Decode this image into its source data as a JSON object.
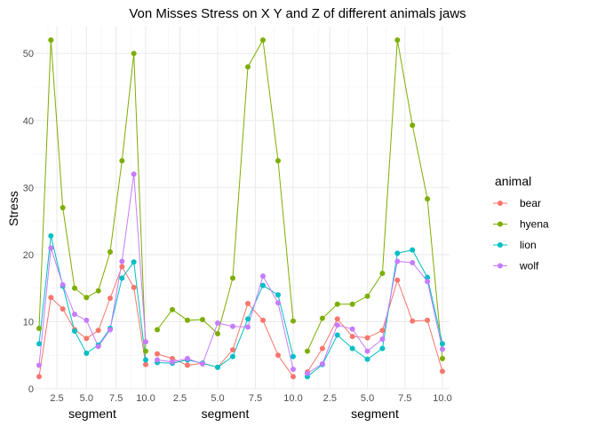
{
  "chart_data": {
    "type": "line",
    "title": "Von Misses Stress on X Y and Z of different animals jaws",
    "xlabel": "segment",
    "ylabel": "Stress",
    "xlim": [
      1,
      10
    ],
    "ylim": [
      0,
      54
    ],
    "x_ticks": [
      2.5,
      5.0,
      7.5,
      10.0
    ],
    "x_tick_labels": [
      "2.5",
      "5.0",
      "7.5",
      "10.0"
    ],
    "y_ticks": [
      0,
      10,
      20,
      30,
      40,
      50
    ],
    "y_tick_labels": [
      "0",
      "10",
      "20",
      "30",
      "40",
      "50"
    ],
    "grid": true,
    "legend": {
      "title": "animal",
      "position": "right",
      "entries": [
        "bear",
        "hyena",
        "lion",
        "wolf"
      ]
    },
    "colors": {
      "bear": "#F8766D",
      "hyena": "#7CAE00",
      "lion": "#00BFC4",
      "wolf": "#C77CFF"
    },
    "x": [
      1,
      2,
      3,
      4,
      5,
      6,
      7,
      8,
      9,
      10
    ],
    "panels": [
      {
        "series": [
          {
            "name": "bear",
            "values": [
              1.8,
              13.6,
              11.9,
              8.8,
              7.5,
              8.7,
              13.5,
              18.2,
              15.1,
              3.6
            ]
          },
          {
            "name": "hyena",
            "values": [
              9.0,
              52.0,
              27.0,
              15.0,
              13.6,
              14.6,
              20.4,
              34.0,
              50.0,
              5.6
            ]
          },
          {
            "name": "lion",
            "values": [
              6.7,
              22.8,
              15.3,
              8.6,
              5.3,
              6.5,
              9.0,
              16.5,
              18.9,
              4.3
            ]
          },
          {
            "name": "wolf",
            "values": [
              3.5,
              21.0,
              15.5,
              11.1,
              10.2,
              6.3,
              8.8,
              19.0,
              32.0,
              7.0
            ]
          }
        ]
      },
      {
        "series": [
          {
            "name": "bear",
            "values": [
              5.2,
              4.5,
              3.5,
              3.8,
              3.2,
              5.8,
              12.7,
              10.2,
              5.0,
              1.8
            ]
          },
          {
            "name": "hyena",
            "values": [
              8.8,
              11.8,
              10.2,
              10.3,
              8.2,
              16.5,
              48.0,
              52.0,
              34.0,
              10.1
            ]
          },
          {
            "name": "lion",
            "values": [
              3.9,
              3.8,
              4.3,
              3.8,
              3.2,
              4.8,
              10.4,
              15.4,
              14.0,
              4.8
            ]
          },
          {
            "name": "wolf",
            "values": [
              4.3,
              4.0,
              4.5,
              3.7,
              9.8,
              9.3,
              9.2,
              16.8,
              12.8,
              2.9
            ]
          }
        ]
      },
      {
        "series": [
          {
            "name": "bear",
            "values": [
              2.5,
              6.0,
              10.4,
              7.8,
              7.6,
              8.7,
              16.2,
              10.1,
              10.2,
              2.6
            ]
          },
          {
            "name": "hyena",
            "values": [
              5.6,
              10.5,
              12.6,
              12.6,
              13.8,
              17.2,
              52.0,
              39.3,
              28.3,
              4.5
            ]
          },
          {
            "name": "lion",
            "values": [
              1.8,
              3.6,
              8.0,
              6.0,
              4.4,
              6.0,
              20.2,
              20.7,
              16.6,
              6.7
            ]
          },
          {
            "name": "wolf",
            "values": [
              2.3,
              3.7,
              9.5,
              8.9,
              5.6,
              7.4,
              19.0,
              18.8,
              16.0,
              5.9
            ]
          }
        ]
      }
    ]
  }
}
